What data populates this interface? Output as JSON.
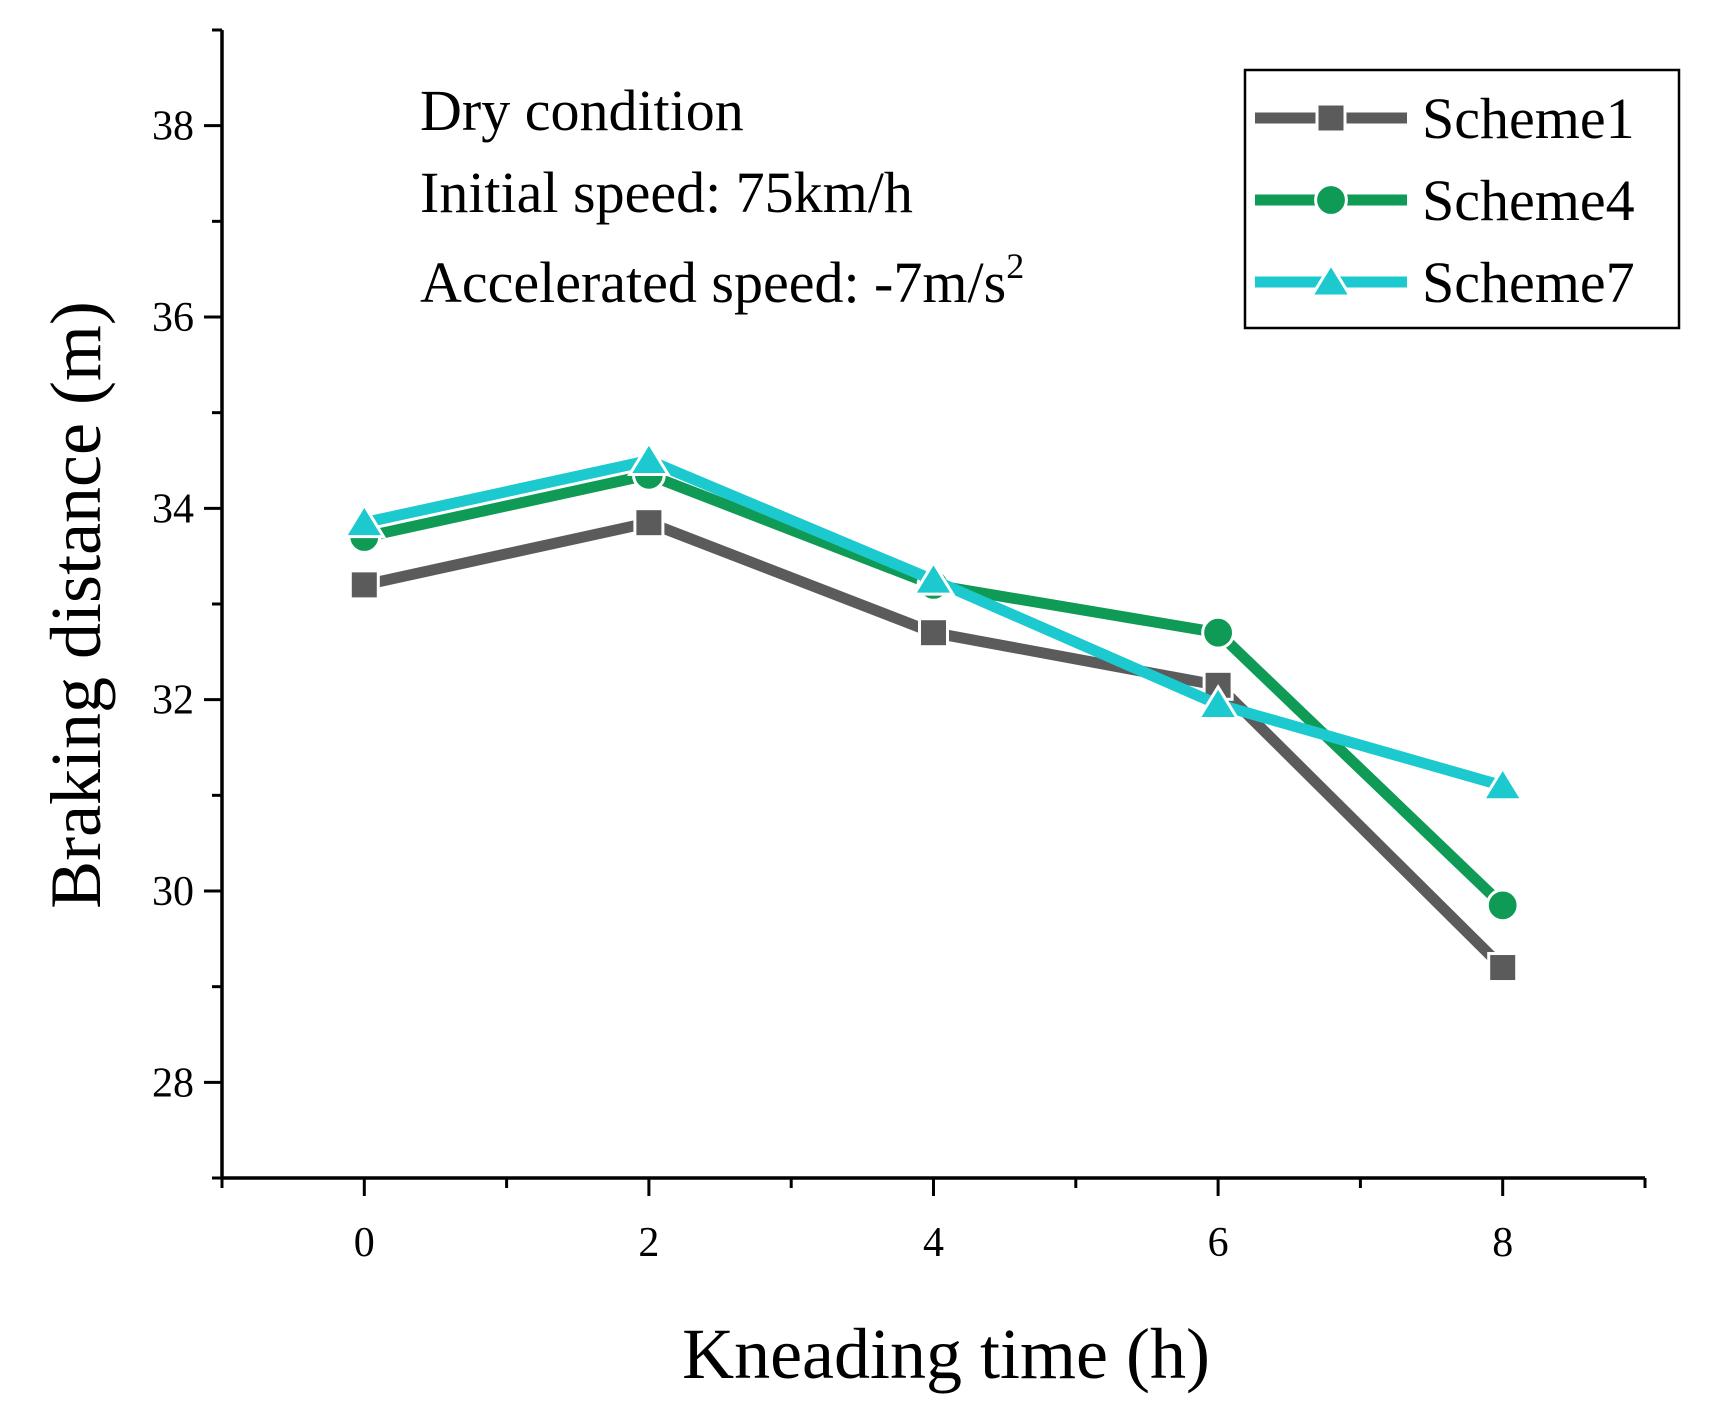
{
  "chart_data": {
    "type": "line",
    "title": "",
    "xlabel": "Kneading time (h)",
    "ylabel": "Braking distance (m)",
    "xlim": [
      -1,
      9
    ],
    "ylim": [
      27,
      39
    ],
    "x_ticks": [
      0,
      2,
      4,
      6,
      8
    ],
    "y_ticks": [
      28,
      30,
      32,
      34,
      36,
      38
    ],
    "annotations": [
      "Dry condition",
      "Initial speed: 75km/h",
      "Accelerated speed: -7m/s",
      "2"
    ],
    "legend_position": "top-right",
    "grid": false,
    "x": [
      0,
      2,
      4,
      6,
      8
    ],
    "series": [
      {
        "name": "Scheme1",
        "marker": "square",
        "color": "#5b5b5b",
        "values": [
          33.2,
          33.85,
          32.7,
          32.15,
          29.2
        ]
      },
      {
        "name": "Scheme4",
        "marker": "circle",
        "color": "#0f9b55",
        "values": [
          33.7,
          34.35,
          33.2,
          32.7,
          29.85
        ]
      },
      {
        "name": "Scheme7",
        "marker": "triangle",
        "color": "#1bc9cf",
        "values": [
          33.85,
          34.5,
          33.25,
          31.95,
          31.1
        ]
      }
    ]
  }
}
